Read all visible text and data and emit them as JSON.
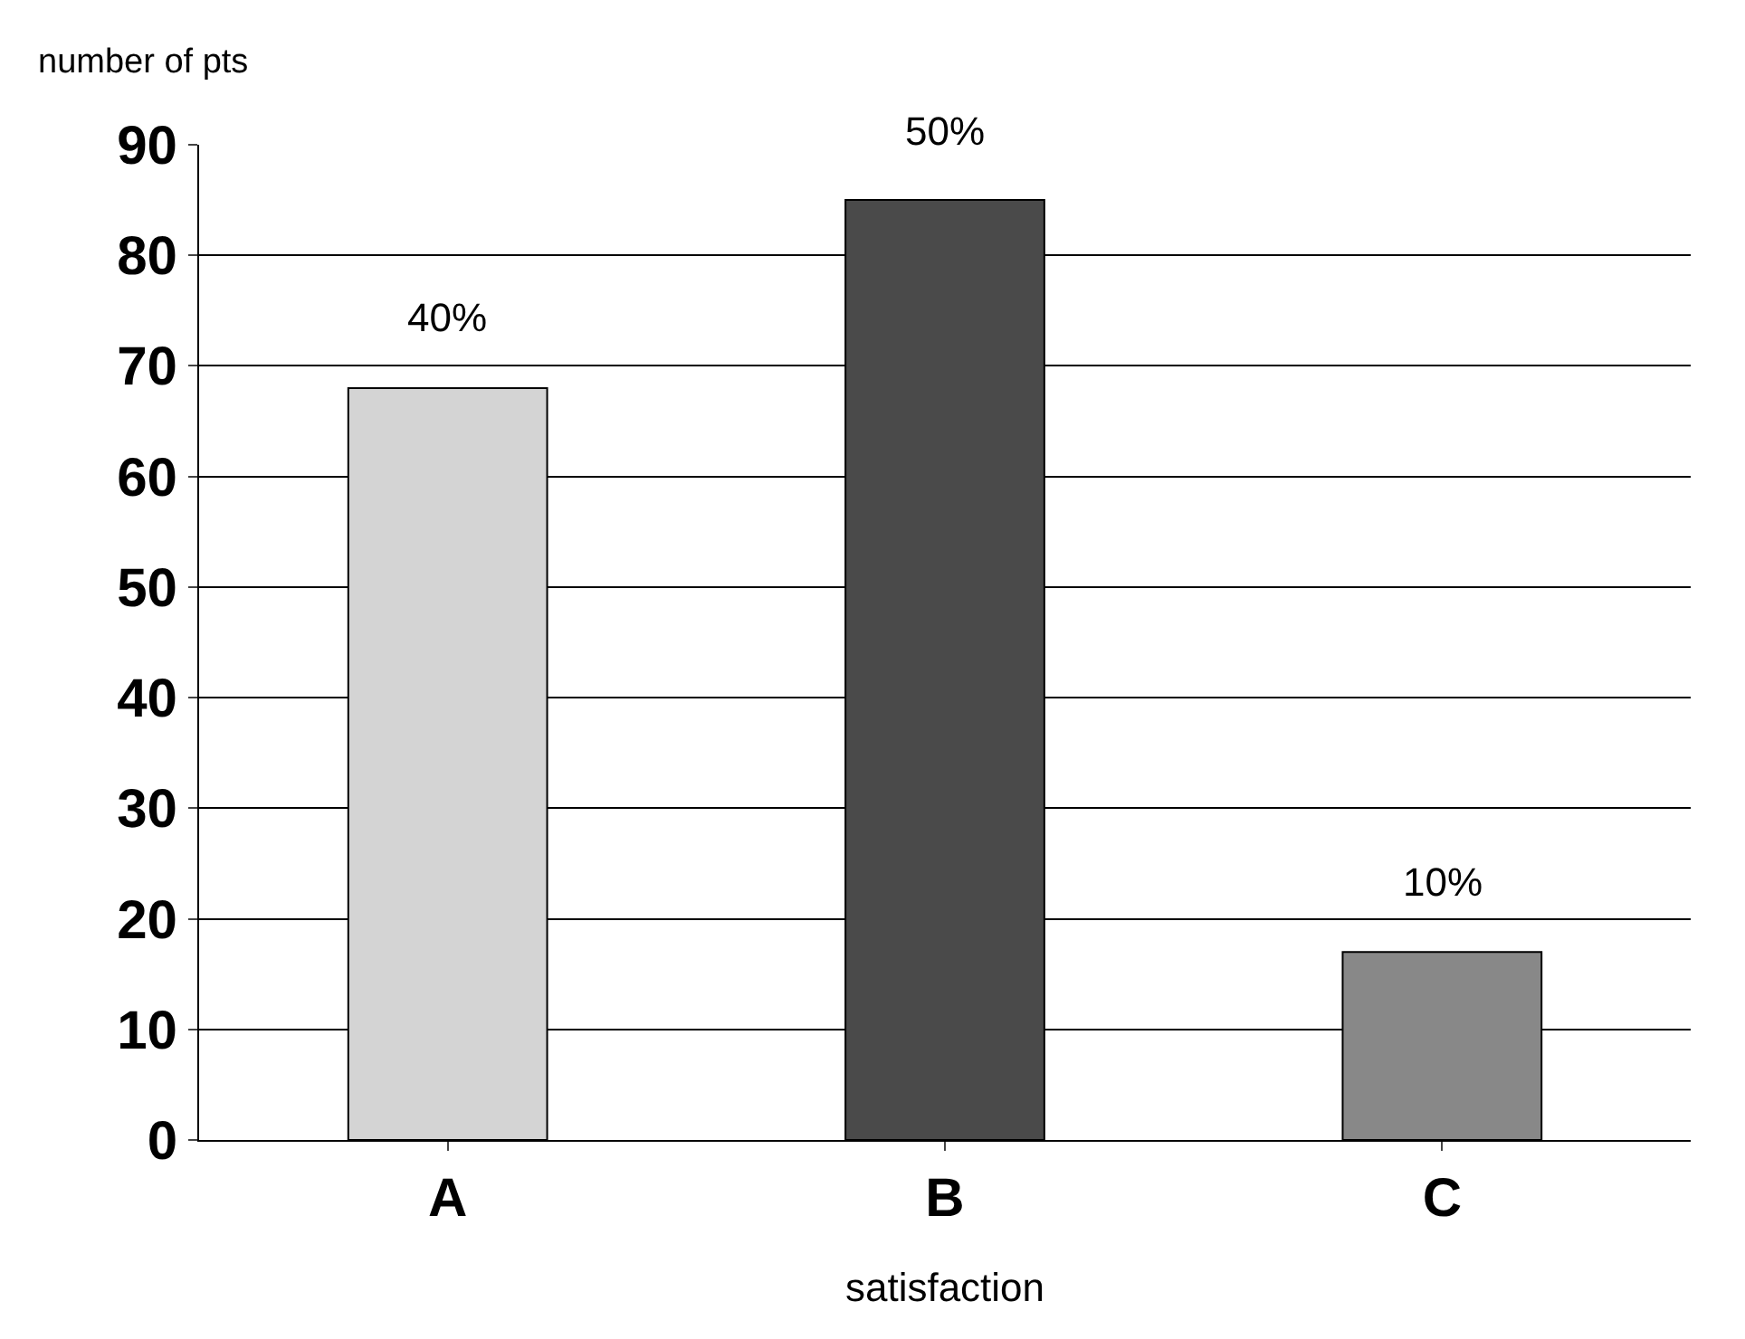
{
  "chart_data": {
    "type": "bar",
    "xlabel": "satisfaction",
    "ylabel": "number of pts",
    "categories": [
      "A",
      "B",
      "C"
    ],
    "values": [
      68,
      85,
      17
    ],
    "colors": [
      "#d4d4d4",
      "#4a4a4a",
      "#888888"
    ],
    "annotations": [
      {
        "text": "40%",
        "x": "A",
        "y": 68
      },
      {
        "text": "50%",
        "x": "B",
        "y": 85
      },
      {
        "text": "10%",
        "x": "C",
        "y": 17
      }
    ],
    "ylim": [
      0,
      90
    ],
    "yticks": [
      0,
      10,
      20,
      30,
      40,
      50,
      60,
      70,
      80,
      90
    ],
    "grid": "y"
  }
}
